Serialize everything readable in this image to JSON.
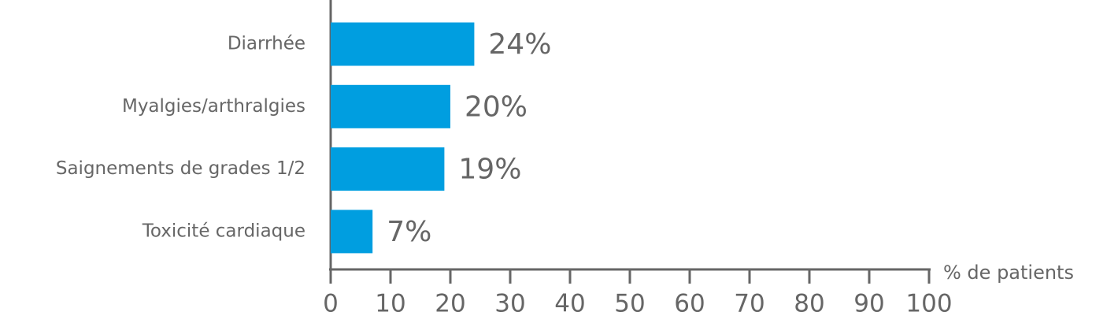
{
  "chart_data": {
    "type": "barh",
    "categories": [
      "Diarrhée",
      "Myalgies/arthralgies",
      "Saignements de grades 1/2",
      "Toxicité cardiaque"
    ],
    "values": [
      24,
      20,
      19,
      7
    ],
    "value_labels": [
      "24%",
      "20%",
      "19%",
      "7%"
    ],
    "color": "#009ee0",
    "xlabel": "% de patients",
    "xlim": [
      0,
      100
    ],
    "xticks": [
      0,
      10,
      20,
      30,
      40,
      50,
      60,
      70,
      80,
      90,
      100
    ]
  }
}
